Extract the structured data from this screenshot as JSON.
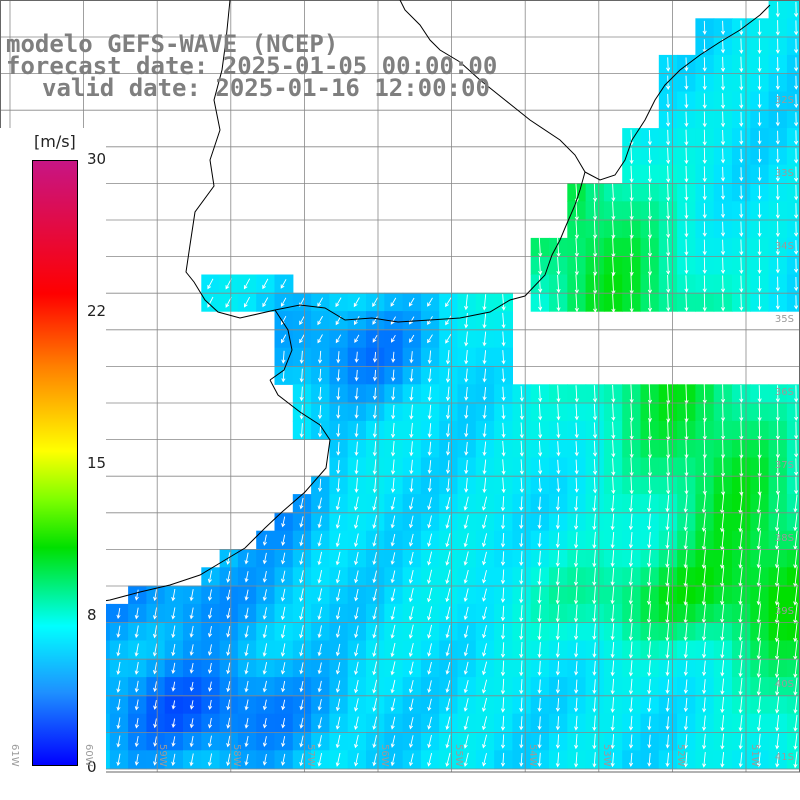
{
  "title": {
    "line1": "modelo GEFS-WAVE (NCEP)",
    "line2": "forecast date: 2025-01-05 00:00:00",
    "line3": "valid date: 2025-01-16 12:00:00"
  },
  "colorbar": {
    "unit": "[m/s]",
    "ticks": [
      "30",
      "22",
      "15",
      "8",
      "0"
    ],
    "colors": [
      "#c71585",
      "#ff0000",
      "#ff7f00",
      "#ffff00",
      "#00e000",
      "#00ffff",
      "#1e90ff",
      "#0000ff"
    ]
  },
  "lat_labels": [
    "32S",
    "33S",
    "34S",
    "35S",
    "36S",
    "37S",
    "38S",
    "39S",
    "40S",
    "41S"
  ],
  "lon_labels": [
    "61W",
    "60W",
    "59W",
    "58W",
    "57W",
    "56W",
    "55W",
    "54W",
    "53W",
    "52W",
    "51W"
  ],
  "map": {
    "variable": "wind speed and direction",
    "min_speed_ms": 0,
    "max_speed_ms": 30
  }
}
